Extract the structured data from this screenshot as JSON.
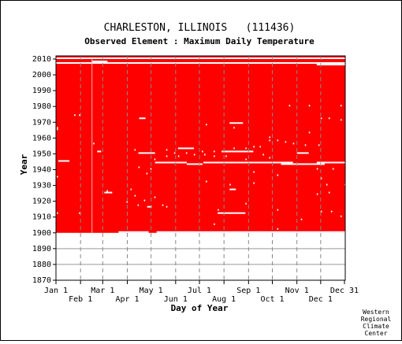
{
  "chart_data": {
    "type": "heatmap",
    "title": "CHARLESTON, ILLINOIS   (111436)",
    "subtitle": "Observed Element : Maximum Daily Temperature",
    "xlabel": "Day of Year",
    "ylabel": "Year",
    "xlim": [
      1,
      366
    ],
    "ylim": [
      1870,
      2012
    ],
    "x_ticks_top_row": [
      {
        "label": "Jan 1",
        "day": 1
      },
      {
        "label": "Mar 1",
        "day": 60
      },
      {
        "label": "May 1",
        "day": 121
      },
      {
        "label": "Jul 1",
        "day": 182
      },
      {
        "label": "Sep 1",
        "day": 244
      },
      {
        "label": "Nov 1",
        "day": 305
      },
      {
        "label": "Dec 31",
        "day": 365
      }
    ],
    "x_ticks_bottom_row": [
      {
        "label": "Feb 1",
        "day": 32
      },
      {
        "label": "Apr 1",
        "day": 91
      },
      {
        "label": "Jun 1",
        "day": 152
      },
      {
        "label": "Aug 1",
        "day": 213
      },
      {
        "label": "Oct 1",
        "day": 274
      },
      {
        "label": "Dec 1",
        "day": 335
      }
    ],
    "y_ticks": [
      1870,
      1880,
      1890,
      1900,
      1910,
      1920,
      1930,
      1940,
      1950,
      1960,
      1970,
      1980,
      1990,
      2000,
      2010
    ],
    "grid": true,
    "present_color": "#ff0000",
    "missing_color": "#ffffff",
    "record_span": {
      "start_year": 1900,
      "end_year": 2011
    },
    "missing_bands": [
      {
        "year": 2007,
        "start_day": 1,
        "end_day": 366
      },
      {
        "year": 2010,
        "start_day": 1,
        "end_day": 366
      },
      {
        "year": 2006,
        "start_day": 330,
        "end_day": 366
      },
      {
        "year": 2008,
        "start_day": 46,
        "end_day": 66
      },
      {
        "year": 1900,
        "start_day": 80,
        "end_day": 118
      },
      {
        "year": 1900,
        "start_day": 128,
        "end_day": 366
      },
      {
        "year": 1912,
        "start_day": 205,
        "end_day": 240
      },
      {
        "year": 1925,
        "start_day": 62,
        "end_day": 72
      },
      {
        "year": 1944,
        "start_day": 126,
        "end_day": 166
      },
      {
        "year": 1944,
        "start_day": 187,
        "end_day": 300
      },
      {
        "year": 1943,
        "start_day": 166,
        "end_day": 186
      },
      {
        "year": 1943,
        "start_day": 285,
        "end_day": 340
      },
      {
        "year": 1944,
        "start_day": 330,
        "end_day": 366
      },
      {
        "year": 1945,
        "start_day": 4,
        "end_day": 18
      },
      {
        "year": 1950,
        "start_day": 105,
        "end_day": 126
      },
      {
        "year": 1969,
        "start_day": 220,
        "end_day": 237
      },
      {
        "year": 1972,
        "start_day": 106,
        "end_day": 114
      },
      {
        "year": 1953,
        "start_day": 155,
        "end_day": 175
      },
      {
        "year": 1951,
        "start_day": 210,
        "end_day": 250
      },
      {
        "year": 1927,
        "start_day": 220,
        "end_day": 228
      },
      {
        "year": 1916,
        "start_day": 116,
        "end_day": 122
      },
      {
        "year": 1950,
        "start_day": 305,
        "end_day": 320
      },
      {
        "year": 1951,
        "start_day": 53,
        "end_day": 58
      }
    ],
    "missing_days": [
      [
        1980,
        295
      ],
      [
        1980,
        320
      ],
      [
        1980,
        360
      ],
      [
        1974,
        24
      ],
      [
        1974,
        30
      ],
      [
        1972,
        335
      ],
      [
        1972,
        345
      ],
      [
        1971,
        360
      ],
      [
        1966,
        225
      ],
      [
        1963,
        320
      ],
      [
        1960,
        270
      ],
      [
        1958,
        270
      ],
      [
        1958,
        280
      ],
      [
        1957,
        290
      ],
      [
        1956,
        300
      ],
      [
        1955,
        315
      ],
      [
        1955,
        332
      ],
      [
        1954,
        250
      ],
      [
        1954,
        258
      ],
      [
        1953,
        240
      ],
      [
        1953,
        225
      ],
      [
        1952,
        140
      ],
      [
        1952,
        100
      ],
      [
        1951,
        185
      ],
      [
        1951,
        200
      ],
      [
        1951,
        230
      ],
      [
        1950,
        150
      ],
      [
        1950,
        165
      ],
      [
        1949,
        175
      ],
      [
        1949,
        188
      ],
      [
        1949,
        262
      ],
      [
        1948,
        140
      ],
      [
        1948,
        155
      ],
      [
        1948,
        200
      ],
      [
        1948,
        215
      ],
      [
        1947,
        270
      ],
      [
        1946,
        125
      ],
      [
        1946,
        240
      ],
      [
        1941,
        105
      ],
      [
        1940,
        120
      ],
      [
        1940,
        330
      ],
      [
        1938,
        250
      ],
      [
        1937,
        115
      ],
      [
        1936,
        280
      ],
      [
        1934,
        335
      ],
      [
        1932,
        190
      ],
      [
        1931,
        250
      ],
      [
        1930,
        342
      ],
      [
        1930,
        220
      ],
      [
        1927,
        95
      ],
      [
        1926,
        65
      ],
      [
        1925,
        345
      ],
      [
        1923,
        100
      ],
      [
        1922,
        125
      ],
      [
        1920,
        112
      ],
      [
        1919,
        90
      ],
      [
        1918,
        240
      ],
      [
        1917,
        104
      ],
      [
        1917,
        135
      ],
      [
        1916,
        140
      ],
      [
        1914,
        280
      ],
      [
        1914,
        205
      ],
      [
        1913,
        335
      ],
      [
        1913,
        348
      ],
      [
        1912,
        30
      ],
      [
        1910,
        360
      ],
      [
        1908,
        310
      ],
      [
        1905,
        200
      ],
      [
        1902,
        280
      ],
      [
        1965,
        2
      ],
      [
        1966,
        2
      ],
      [
        1935,
        2
      ],
      [
        1956,
        48
      ],
      [
        1912,
        2
      ],
      [
        1924,
        330
      ],
      [
        1940,
        350
      ],
      [
        1930,
        365
      ],
      [
        1968,
        190
      ]
    ],
    "missing_columns": [
      {
        "day": 46,
        "start_year": 1900,
        "end_year": 2009
      }
    ]
  },
  "credit": [
    "Western",
    "Regional",
    "Climate",
    "Center"
  ]
}
